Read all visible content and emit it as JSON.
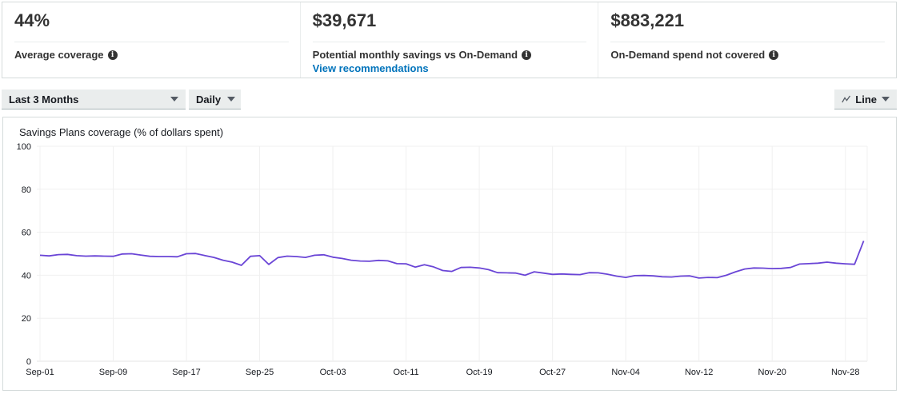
{
  "summary": {
    "cards": [
      {
        "value": "44%",
        "label": "Average coverage",
        "icon": "info-icon"
      },
      {
        "value": "$39,671",
        "label": "Potential monthly savings vs On-Demand",
        "icon": "info-icon",
        "link": "View recommendations"
      },
      {
        "value": "$883,221",
        "label": "On-Demand spend not covered",
        "icon": "info-icon"
      }
    ]
  },
  "controls": {
    "time_range": "Last 3 Months",
    "granularity": "Daily",
    "chart_type": "Line",
    "chart_type_icon": "line-chart-icon"
  },
  "colors": {
    "line": "#6a45d6",
    "link": "#0073bb",
    "grid": "#f0f0f0"
  },
  "chart_data": {
    "type": "line",
    "title": "Savings Plans coverage (% of dollars spent)",
    "xlabel": "",
    "ylabel": "",
    "ylim": [
      0,
      100
    ],
    "yticks": [
      0,
      20,
      40,
      60,
      80,
      100
    ],
    "xtick_labels": [
      "Sep-01",
      "Sep-09",
      "Sep-17",
      "Sep-25",
      "Oct-03",
      "Oct-11",
      "Oct-19",
      "Oct-27",
      "Nov-04",
      "Nov-12",
      "Nov-20",
      "Nov-28"
    ],
    "grid": true,
    "legend": null,
    "x_start": "Sep-01",
    "x_end": "Nov-30",
    "series": [
      {
        "name": "Savings Plans coverage",
        "values": [
          49.3,
          49.0,
          49.6,
          49.7,
          49.1,
          48.9,
          49.0,
          48.9,
          48.8,
          49.9,
          50.0,
          49.4,
          48.8,
          48.7,
          48.7,
          48.6,
          50.0,
          50.1,
          49.2,
          48.3,
          47.0,
          46.1,
          44.6,
          48.8,
          49.1,
          45.0,
          48.2,
          48.9,
          48.7,
          48.3,
          49.3,
          49.5,
          48.4,
          47.8,
          47.0,
          46.6,
          46.5,
          46.9,
          46.7,
          45.4,
          45.3,
          43.8,
          44.9,
          43.9,
          42.2,
          41.8,
          43.6,
          43.7,
          43.4,
          42.6,
          41.2,
          41.1,
          41.0,
          40.0,
          41.6,
          41.0,
          40.4,
          40.6,
          40.4,
          40.3,
          41.2,
          41.1,
          40.5,
          39.6,
          39.0,
          39.8,
          39.9,
          39.7,
          39.3,
          39.2,
          39.6,
          39.7,
          38.7,
          39.0,
          38.9,
          40.0,
          41.6,
          42.9,
          43.4,
          43.3,
          43.1,
          43.2,
          43.6,
          45.2,
          45.4,
          45.6,
          46.1,
          45.6,
          45.3,
          45.1,
          56.0
        ]
      }
    ]
  }
}
